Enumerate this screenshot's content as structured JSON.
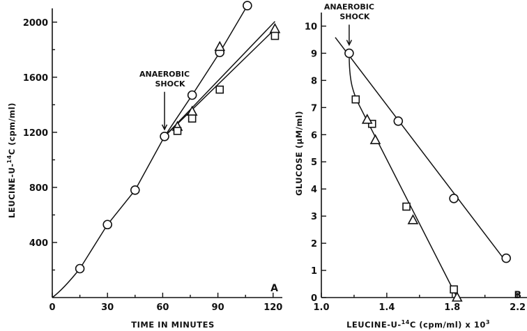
{
  "chart_data": [
    {
      "panel": "A",
      "type": "line",
      "title": "",
      "xlabel": "TIME IN MINUTES",
      "ylabel": "LEUCINE-U-14C (cpm/ml)",
      "ylabel_parts": [
        "LEUCINE-U-",
        "14",
        "C (cpm/ml)"
      ],
      "xlim": [
        0,
        125
      ],
      "ylim": [
        0,
        2100
      ],
      "xticks": [
        0,
        30,
        60,
        90,
        120
      ],
      "yticks": [
        400,
        800,
        1200,
        1600,
        2000
      ],
      "annotation": {
        "lines": [
          "ANAEROBIC",
          "SHOCK"
        ],
        "x": 61,
        "y": 1170
      },
      "series": [
        {
          "marker": "circle",
          "x": [
            15,
            30,
            45,
            61,
            76,
            91,
            106
          ],
          "y": [
            210,
            530,
            780,
            1170,
            1470,
            1780,
            2120
          ]
        },
        {
          "marker": "triangle",
          "x": [
            68,
            76,
            91,
            121
          ],
          "y": [
            1240,
            1350,
            1820,
            1950
          ]
        },
        {
          "marker": "square",
          "x": [
            68,
            76,
            91,
            121
          ],
          "y": [
            1210,
            1300,
            1510,
            1900
          ]
        }
      ]
    },
    {
      "panel": "B",
      "type": "line",
      "title": "",
      "xlabel": "LEUCINE-U-14C (cpm/ml) x 10^3",
      "xlabel_parts": [
        "LEUCINE-U-",
        "14",
        "C (cpm/ml) x 10",
        "3"
      ],
      "ylabel": "GLUCOSE (µM/ml)",
      "xlim": [
        1.0,
        2.5
      ],
      "ylim": [
        0,
        10.5
      ],
      "xticks": [
        1.0,
        1.4,
        1.8,
        2.2
      ],
      "yticks": [
        0,
        1,
        2,
        3,
        4,
        5,
        6,
        7,
        8,
        9,
        10
      ],
      "annotation": {
        "lines": [
          "ANAEROBIC",
          "SHOCK"
        ],
        "x": 1.17,
        "y": 9.0
      },
      "series": [
        {
          "marker": "circle",
          "x": [
            1.17,
            1.47,
            1.81,
            2.13
          ],
          "y": [
            9.0,
            6.5,
            3.65,
            1.45
          ]
        },
        {
          "marker": "square",
          "x": [
            1.21,
            1.31,
            1.52,
            1.81
          ],
          "y": [
            7.3,
            6.4,
            3.35,
            0.3
          ]
        },
        {
          "marker": "triangle",
          "x": [
            1.28,
            1.33,
            1.56,
            1.83
          ],
          "y": [
            6.55,
            5.8,
            2.85,
            0
          ]
        }
      ]
    }
  ]
}
